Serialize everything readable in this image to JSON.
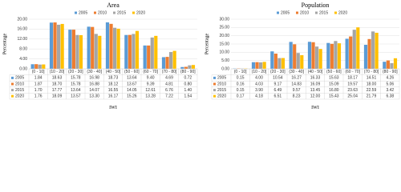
{
  "chart_data": [
    {
      "type": "bar",
      "title": "Area",
      "x_label": "IWI",
      "y_label": "Percentage",
      "categories": [
        "(0 - 10]",
        "(10 - 20]",
        "(20 - 30]",
        "(30 - 40]",
        "(40 - 50]",
        "(50 - 60]",
        "(60 - 70]",
        "(70 - 80]",
        "(80 - 90]"
      ],
      "series": [
        {
          "name": "2005",
          "color": "#5b9bd5",
          "values": [
            1.84,
            18.63,
            15.78,
            16.98,
            18.73,
            13.64,
            9.4,
            4.69,
            0.72
          ],
          "value_labels": [
            "1.84",
            "18.63",
            "15.78",
            "16.98",
            "18.73",
            "13.64",
            "9.40",
            "4.69",
            "0.72"
          ]
        },
        {
          "name": "2010",
          "color": "#ed7d31",
          "values": [
            1.87,
            18.7,
            15.78,
            16.88,
            18.12,
            13.67,
            9.39,
            4.81,
            0.8
          ],
          "value_labels": [
            "1.87",
            "18.70",
            "15.78",
            "16.88",
            "18.12",
            "13.67",
            "9.39",
            "4.81",
            "0.80"
          ]
        },
        {
          "name": "2015",
          "color": "#a5a5a5",
          "values": [
            1.7,
            17.77,
            13.64,
            14.07,
            16.55,
            14.05,
            12.61,
            6.76,
            1.4
          ],
          "value_labels": [
            "1.70",
            "17.77",
            "13.64",
            "14.07",
            "16.55",
            "14.05",
            "12.61",
            "6.76",
            "1.40"
          ]
        },
        {
          "name": "2020",
          "color": "#ffc000",
          "values": [
            1.76,
            18.09,
            13.57,
            13.3,
            16.17,
            15.26,
            13.28,
            7.22,
            1.54
          ],
          "value_labels": [
            "1.76",
            "18.09",
            "13.57",
            "13.30",
            "16.17",
            "15.26",
            "13.28",
            "7.22",
            "1.54"
          ]
        }
      ],
      "ylim": [
        0,
        20
      ],
      "yticks": [
        {
          "value": 0,
          "label": "0.00"
        },
        {
          "value": 4,
          "label": "4.00"
        },
        {
          "value": 8,
          "label": "8.00"
        },
        {
          "value": 12,
          "label": "12.00"
        },
        {
          "value": 16,
          "label": "16.00"
        },
        {
          "value": 20,
          "label": "20.00"
        }
      ],
      "grid": true,
      "legend": "top"
    },
    {
      "type": "bar",
      "title": "Population",
      "x_label": "IWI",
      "y_label": "Percentage",
      "categories": [
        "(0 - 10]",
        "(10 - 20]",
        "(20 - 30]",
        "(30 - 40]",
        "(40 - 50]",
        "(50 - 60]",
        "(60 - 70]",
        "(70 - 80]",
        "(80 - 90]"
      ],
      "series": [
        {
          "name": "2005",
          "color": "#5b9bd5",
          "values": [
            0.15,
            4.0,
            10.54,
            16.27,
            16.33,
            15.63,
            18.17,
            14.51,
            4.26
          ],
          "value_labels": [
            "0.15",
            "4.00",
            "10.54",
            "16.27",
            "16.33",
            "15.63",
            "18.17",
            "14.51",
            "4.26"
          ]
        },
        {
          "name": "2010",
          "color": "#ed7d31",
          "values": [
            0.16,
            4.03,
            9.17,
            14.83,
            16.09,
            15.09,
            19.57,
            18.0,
            5.06
          ],
          "value_labels": [
            "0.16",
            "4.03",
            "9.17",
            "14.83",
            "16.09",
            "15.09",
            "19.57",
            "18.00",
            "5.06"
          ]
        },
        {
          "name": "2015",
          "color": "#a5a5a5",
          "values": [
            0.15,
            3.9,
            6.49,
            9.57,
            13.45,
            16.8,
            23.63,
            22.59,
            3.42
          ],
          "value_labels": [
            "0.15",
            "3.90",
            "6.49",
            "9.57",
            "13.45",
            "16.80",
            "23.63",
            "22.59",
            "3.42"
          ]
        },
        {
          "name": "2020",
          "color": "#ffc000",
          "values": [
            0.17,
            4.18,
            6.51,
            8.23,
            12.0,
            15.43,
            25.04,
            21.79,
            6.38
          ],
          "value_labels": [
            "0.17",
            "4.18",
            "6.51",
            "8.23",
            "12.00",
            "15.43",
            "25.04",
            "21.79",
            "6.38"
          ]
        }
      ],
      "ylim": [
        0,
        30
      ],
      "yticks": [
        {
          "value": 0,
          "label": "0.00"
        },
        {
          "value": 5,
          "label": "5.00"
        },
        {
          "value": 10,
          "label": "10.00"
        },
        {
          "value": 15,
          "label": "15.00"
        },
        {
          "value": 20,
          "label": "20.00"
        },
        {
          "value": 25,
          "label": "25.00"
        },
        {
          "value": 30,
          "label": "30.00"
        }
      ],
      "grid": true,
      "legend": "top"
    }
  ]
}
